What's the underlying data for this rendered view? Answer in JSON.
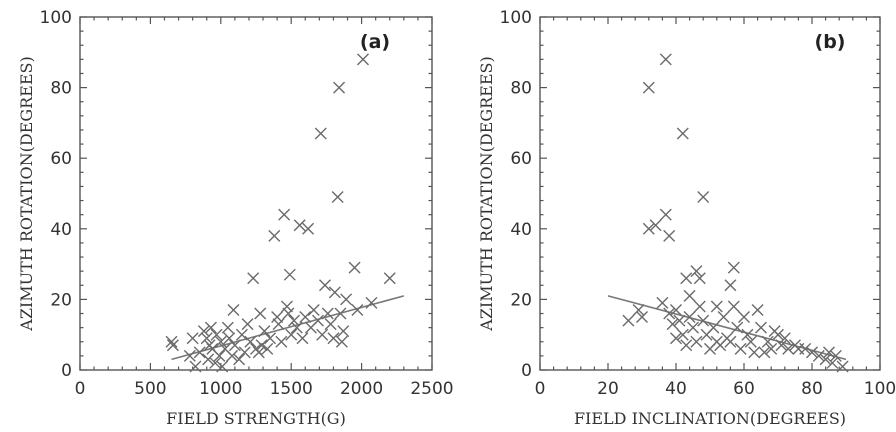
{
  "chart_data": [
    {
      "type": "scatter",
      "panel_label": "(a)",
      "xlabel": "FIELD STRENGTH(G)",
      "ylabel": "AZIMUTH ROTATION(DEGREES)",
      "xlim": [
        0,
        2500
      ],
      "ylim": [
        0,
        100
      ],
      "xticks": [
        "0",
        "500",
        "1000",
        "1500",
        "2000",
        "2500"
      ],
      "yticks": [
        "0",
        "20",
        "40",
        "60",
        "80",
        "100"
      ],
      "marker": "x",
      "points": [
        [
          650,
          8
        ],
        [
          660,
          7
        ],
        [
          780,
          4
        ],
        [
          800,
          9
        ],
        [
          820,
          1
        ],
        [
          850,
          5
        ],
        [
          880,
          11
        ],
        [
          900,
          9
        ],
        [
          910,
          3
        ],
        [
          920,
          7
        ],
        [
          930,
          12
        ],
        [
          940,
          6
        ],
        [
          960,
          2
        ],
        [
          970,
          10
        ],
        [
          990,
          4
        ],
        [
          1000,
          8
        ],
        [
          1010,
          1
        ],
        [
          1030,
          6
        ],
        [
          1050,
          12
        ],
        [
          1060,
          9
        ],
        [
          1080,
          4
        ],
        [
          1090,
          17
        ],
        [
          1100,
          7
        ],
        [
          1130,
          3
        ],
        [
          1150,
          10
        ],
        [
          1170,
          5
        ],
        [
          1190,
          13
        ],
        [
          1210,
          8
        ],
        [
          1230,
          26
        ],
        [
          1250,
          6
        ],
        [
          1270,
          5
        ],
        [
          1280,
          16
        ],
        [
          1290,
          7
        ],
        [
          1310,
          11
        ],
        [
          1330,
          6
        ],
        [
          1350,
          9
        ],
        [
          1380,
          38
        ],
        [
          1400,
          15
        ],
        [
          1410,
          13
        ],
        [
          1430,
          8
        ],
        [
          1450,
          44
        ],
        [
          1470,
          18
        ],
        [
          1480,
          16
        ],
        [
          1490,
          27
        ],
        [
          1500,
          10
        ],
        [
          1520,
          14
        ],
        [
          1540,
          12
        ],
        [
          1560,
          41
        ],
        [
          1580,
          9
        ],
        [
          1600,
          15
        ],
        [
          1620,
          40
        ],
        [
          1640,
          12
        ],
        [
          1660,
          17
        ],
        [
          1690,
          14
        ],
        [
          1710,
          67
        ],
        [
          1720,
          10
        ],
        [
          1740,
          24
        ],
        [
          1760,
          16
        ],
        [
          1780,
          13
        ],
        [
          1800,
          9
        ],
        [
          1810,
          22
        ],
        [
          1830,
          49
        ],
        [
          1840,
          80
        ],
        [
          1850,
          16
        ],
        [
          1860,
          8
        ],
        [
          1870,
          11
        ],
        [
          1890,
          20
        ],
        [
          1950,
          29
        ],
        [
          1970,
          17
        ],
        [
          2010,
          88
        ],
        [
          2070,
          19
        ],
        [
          2200,
          26
        ]
      ],
      "fit_line": [
        [
          650,
          3
        ],
        [
          2300,
          21
        ]
      ]
    },
    {
      "type": "scatter",
      "panel_label": "(b)",
      "xlabel": "FIELD INCLINATION(DEGREES)",
      "ylabel": "AZIMUTH ROTATION(DEGREES)",
      "xlim": [
        0,
        100
      ],
      "ylim": [
        0,
        100
      ],
      "xticks": [
        "0",
        "20",
        "40",
        "60",
        "80",
        "100"
      ],
      "yticks": [
        "0",
        "20",
        "40",
        "60",
        "80",
        "100"
      ],
      "marker": "x",
      "points": [
        [
          26,
          14
        ],
        [
          29,
          17
        ],
        [
          30,
          15
        ],
        [
          32,
          80
        ],
        [
          32,
          40
        ],
        [
          34,
          41
        ],
        [
          36,
          19
        ],
        [
          37,
          44
        ],
        [
          37,
          88
        ],
        [
          38,
          16
        ],
        [
          38,
          38
        ],
        [
          39,
          13
        ],
        [
          40,
          17
        ],
        [
          40,
          9
        ],
        [
          41,
          14
        ],
        [
          42,
          67
        ],
        [
          42,
          10
        ],
        [
          43,
          26
        ],
        [
          43,
          7
        ],
        [
          44,
          21
        ],
        [
          44,
          15
        ],
        [
          45,
          12
        ],
        [
          46,
          28
        ],
        [
          46,
          8
        ],
        [
          47,
          18
        ],
        [
          47,
          26
        ],
        [
          48,
          49
        ],
        [
          48,
          14
        ],
        [
          49,
          10
        ],
        [
          50,
          6
        ],
        [
          51,
          12
        ],
        [
          52,
          18
        ],
        [
          52,
          8
        ],
        [
          53,
          7
        ],
        [
          54,
          15
        ],
        [
          55,
          9
        ],
        [
          56,
          24
        ],
        [
          56,
          8
        ],
        [
          57,
          29
        ],
        [
          57,
          18
        ],
        [
          58,
          12
        ],
        [
          59,
          6
        ],
        [
          60,
          15
        ],
        [
          61,
          10
        ],
        [
          62,
          8
        ],
        [
          63,
          5
        ],
        [
          64,
          17
        ],
        [
          65,
          12
        ],
        [
          66,
          5
        ],
        [
          67,
          8
        ],
        [
          68,
          6
        ],
        [
          69,
          11
        ],
        [
          70,
          10
        ],
        [
          71,
          7
        ],
        [
          72,
          9
        ],
        [
          73,
          6
        ],
        [
          75,
          7
        ],
        [
          76,
          6
        ],
        [
          78,
          6
        ],
        [
          80,
          5
        ],
        [
          82,
          4
        ],
        [
          84,
          3
        ],
        [
          85,
          5
        ],
        [
          86,
          2
        ],
        [
          87,
          4
        ],
        [
          89,
          1
        ]
      ],
      "fit_line": [
        [
          20,
          21
        ],
        [
          90,
          3
        ]
      ]
    }
  ]
}
